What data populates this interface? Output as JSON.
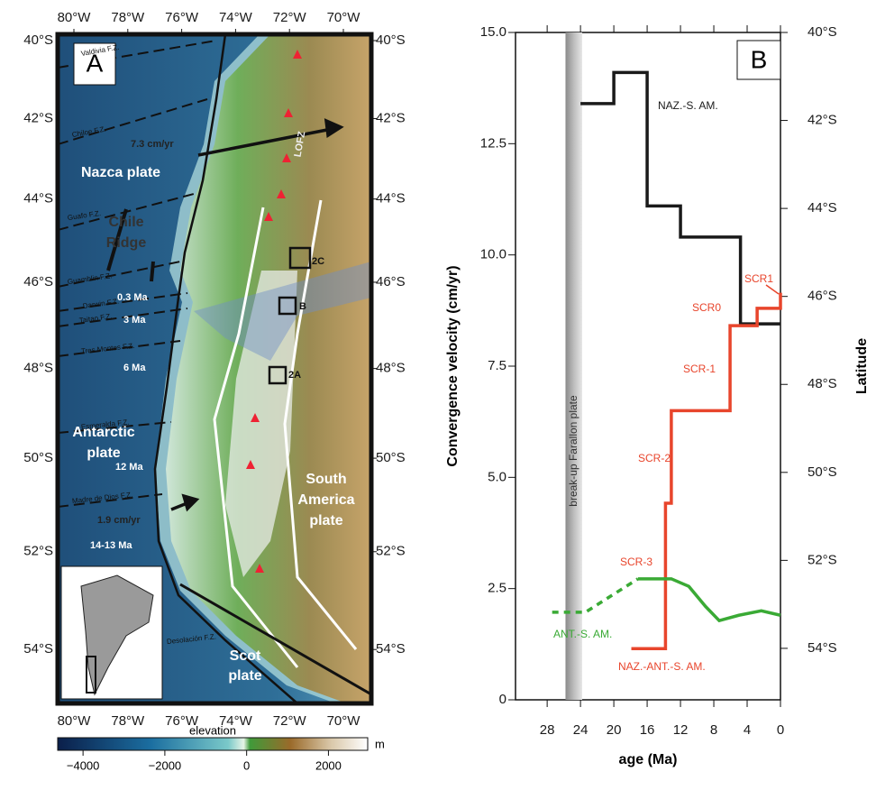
{
  "panel_a": {
    "label": "A",
    "lon_ticks": [
      {
        "value": -80,
        "label": "80°W"
      },
      {
        "value": -78,
        "label": "78°W"
      },
      {
        "value": -76,
        "label": "76°W"
      },
      {
        "value": -74,
        "label": "74°W"
      },
      {
        "value": -72,
        "label": "72°W"
      },
      {
        "value": -70,
        "label": "70°W"
      }
    ],
    "lat_ticks": [
      {
        "value": -40,
        "label": "40°S"
      },
      {
        "value": -42,
        "label": "42°S"
      },
      {
        "value": -44,
        "label": "44°S"
      },
      {
        "value": -46,
        "label": "46°S"
      },
      {
        "value": -48,
        "label": "48°S"
      },
      {
        "value": -50,
        "label": "50°S"
      },
      {
        "value": -52,
        "label": "52°S"
      },
      {
        "value": -54,
        "label": "54°S"
      }
    ],
    "labels": [
      {
        "lines": [
          "Nazca plate"
        ]
      },
      {
        "lines": [
          "Chile",
          "Ridge"
        ]
      },
      {
        "lines": [
          "Antarctic",
          "plate"
        ]
      },
      {
        "lines": [
          "South",
          "America",
          "plate"
        ]
      },
      {
        "lines": [
          "Scot",
          "plate"
        ]
      },
      {
        "lines": [
          "7.3 cm/yr"
        ]
      },
      {
        "lines": [
          "1.9 cm/yr"
        ]
      },
      {
        "lines": [
          "0.3 Ma"
        ]
      },
      {
        "lines": [
          "3 Ma"
        ]
      },
      {
        "lines": [
          "6 Ma"
        ]
      },
      {
        "lines": [
          "12 Ma"
        ]
      },
      {
        "lines": [
          "14-13 Ma"
        ]
      },
      {
        "lines": [
          "Valdivia F.Z."
        ]
      },
      {
        "lines": [
          "Chiloe F.Z."
        ]
      },
      {
        "lines": [
          "Guafo F.Z."
        ]
      },
      {
        "lines": [
          "Guamblin F.Z."
        ]
      },
      {
        "lines": [
          "Darwin F.Z."
        ]
      },
      {
        "lines": [
          "Taitao F.Z."
        ]
      },
      {
        "lines": [
          "Tres Montes F.Z."
        ]
      },
      {
        "lines": [
          "Esmeralda F.Z."
        ]
      },
      {
        "lines": [
          "Madre de Dios F.Z."
        ]
      },
      {
        "lines": [
          "Desolación F.Z."
        ]
      },
      {
        "lines": [
          "LOFZ"
        ]
      },
      {
        "lines": [
          "2C"
        ]
      },
      {
        "lines": [
          "B"
        ]
      },
      {
        "lines": [
          "2A"
        ]
      }
    ],
    "colorbar": {
      "title": "elevation",
      "unit": "m",
      "lim": [
        -4620,
        2960
      ],
      "ticks": [
        {
          "value": -4000,
          "label": "−4000"
        },
        {
          "value": -2000,
          "label": "−2000"
        },
        0,
        2000
      ]
    }
  },
  "chart_data": {
    "type": "line",
    "panel_label": "B",
    "xlabel": "age (Ma)",
    "ylabel": "Convergence velocity (cm/yr)",
    "y2label": "Latitude",
    "xlim": [
      31.8,
      0
    ],
    "xticks": [
      28,
      24,
      20,
      16,
      12,
      8,
      4,
      0
    ],
    "ylim": [
      0,
      15
    ],
    "yticks": [
      0,
      2.5,
      {
        "value": 5,
        "label": "5.0"
      },
      7.5,
      {
        "value": 10,
        "label": "10.0"
      },
      12.5,
      {
        "value": 15,
        "label": "15.0"
      }
    ],
    "y2lim": [
      55.17,
      40
    ],
    "y2ticks": [
      {
        "value": 40,
        "label": "40°S"
      },
      {
        "value": 42,
        "label": "42°S"
      },
      {
        "value": 44,
        "label": "44°S"
      },
      {
        "value": 46,
        "label": "46°S"
      },
      {
        "value": 48,
        "label": "48°S"
      },
      {
        "value": 50,
        "label": "50°S"
      },
      {
        "value": 52,
        "label": "52°S"
      },
      {
        "value": 54,
        "label": "54°S"
      }
    ],
    "shaded_band": {
      "x": [
        25.8,
        23.8
      ],
      "label": "break-up Farallon plate"
    },
    "series": [
      {
        "name": "NAZ.-S. AM.",
        "color": "#1a1a1a",
        "x": [
          24,
          20,
          20,
          16,
          16,
          12,
          12,
          4.8,
          4.8,
          0
        ],
        "values": [
          13.4,
          13.4,
          14.1,
          14.1,
          11.1,
          11.1,
          10.4,
          10.4,
          8.45,
          8.45
        ]
      },
      {
        "name": "NAZ.-ANT.-S. AM.",
        "color": "#e8452c",
        "x": [
          17.9,
          13.8,
          13.8,
          13.1,
          13.1,
          6.05,
          6.05,
          2.8,
          2.8,
          0,
          0
        ],
        "values": [
          1.15,
          1.15,
          4.42,
          4.42,
          6.5,
          6.5,
          8.41,
          8.41,
          8.8,
          8.8,
          9.15
        ]
      },
      {
        "name": "ANT.-S. AM.",
        "color": "#3aaa35",
        "x": [
          17.1,
          13.1,
          11,
          9,
          7.35,
          5,
          2.3,
          0
        ],
        "values": [
          2.72,
          2.72,
          2.55,
          2.1,
          1.78,
          1.9,
          2.0,
          1.9
        ]
      },
      {
        "color": "#3aaa35",
        "dashed": true,
        "x": [
          27.4,
          23.4,
          17.1
        ],
        "values": [
          1.97,
          1.97,
          2.72
        ]
      }
    ],
    "annotations": [
      "SCR1",
      "SCR0",
      "SCR-1",
      "SCR-2",
      "SCR-3"
    ],
    "annotation_color": "#e8452c"
  }
}
